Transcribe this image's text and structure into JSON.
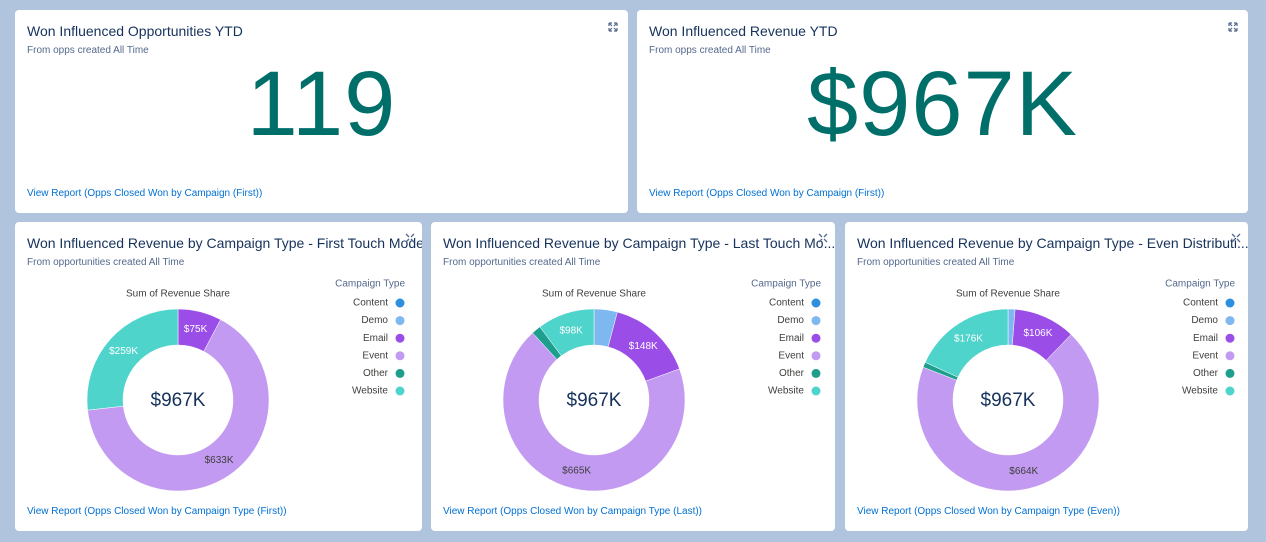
{
  "metrics": [
    {
      "title": "Won Influenced Opportunities YTD",
      "subtitle": "From opps created All Time",
      "value": 119,
      "link": "View Report (Opps Closed Won by Campaign (First))"
    },
    {
      "title": "Won Influenced Revenue YTD",
      "subtitle": "From opps created All Time",
      "value": 967000,
      "value_label": "$967K",
      "link": "View Report (Opps Closed Won by Campaign (First))"
    }
  ],
  "chart_data": [
    {
      "type": "donut",
      "title": "Won Influenced Revenue by Campaign Type - First Touch Model",
      "subtitle": "From opportunities created All Time",
      "axis_title": "Sum of Revenue Share",
      "legend_title": "Campaign Type",
      "center_label": "$967K",
      "categories": [
        "Content",
        "Demo",
        "Email",
        "Event",
        "Other",
        "Website"
      ],
      "colors": [
        "#2e8ee0",
        "#7db8f0",
        "#9b4de8",
        "#c39af2",
        "#1e9e8c",
        "#4ed4cb"
      ],
      "values": [
        0,
        0,
        75000,
        633000,
        0,
        259000
      ],
      "value_labels": [
        null,
        null,
        "$75K",
        "$633K",
        null,
        "$259K"
      ],
      "link": "View Report (Opps Closed Won by Campaign Type (First))"
    },
    {
      "type": "donut",
      "title": "Won Influenced Revenue by Campaign Type - Last Touch Mo...",
      "subtitle": "From opportunities created All Time",
      "axis_title": "Sum of Revenue Share",
      "legend_title": "Campaign Type",
      "center_label": "$967K",
      "categories": [
        "Content",
        "Demo",
        "Email",
        "Event",
        "Other",
        "Website"
      ],
      "colors": [
        "#2e8ee0",
        "#7db8f0",
        "#9b4de8",
        "#c39af2",
        "#1e9e8c",
        "#4ed4cb"
      ],
      "values": [
        0,
        40000,
        148000,
        665000,
        16000,
        98000
      ],
      "value_labels": [
        null,
        null,
        "$148K",
        "$665K",
        null,
        "$98K"
      ],
      "link": "View Report (Opps Closed Won by Campaign Type (Last))"
    },
    {
      "type": "donut",
      "title": "Won Influenced Revenue by Campaign Type - Even Distributi...",
      "subtitle": "From opportunities created All Time",
      "axis_title": "Sum of Revenue Share",
      "legend_title": "Campaign Type",
      "center_label": "$967K",
      "categories": [
        "Content",
        "Demo",
        "Email",
        "Event",
        "Other",
        "Website"
      ],
      "colors": [
        "#2e8ee0",
        "#7db8f0",
        "#9b4de8",
        "#c39af2",
        "#1e9e8c",
        "#4ed4cb"
      ],
      "values": [
        0,
        12000,
        106000,
        664000,
        9000,
        176000
      ],
      "value_labels": [
        null,
        null,
        "$106K",
        "$664K",
        null,
        "$176K"
      ],
      "link": "View Report (Opps Closed Won by Campaign Type (Even))"
    }
  ]
}
